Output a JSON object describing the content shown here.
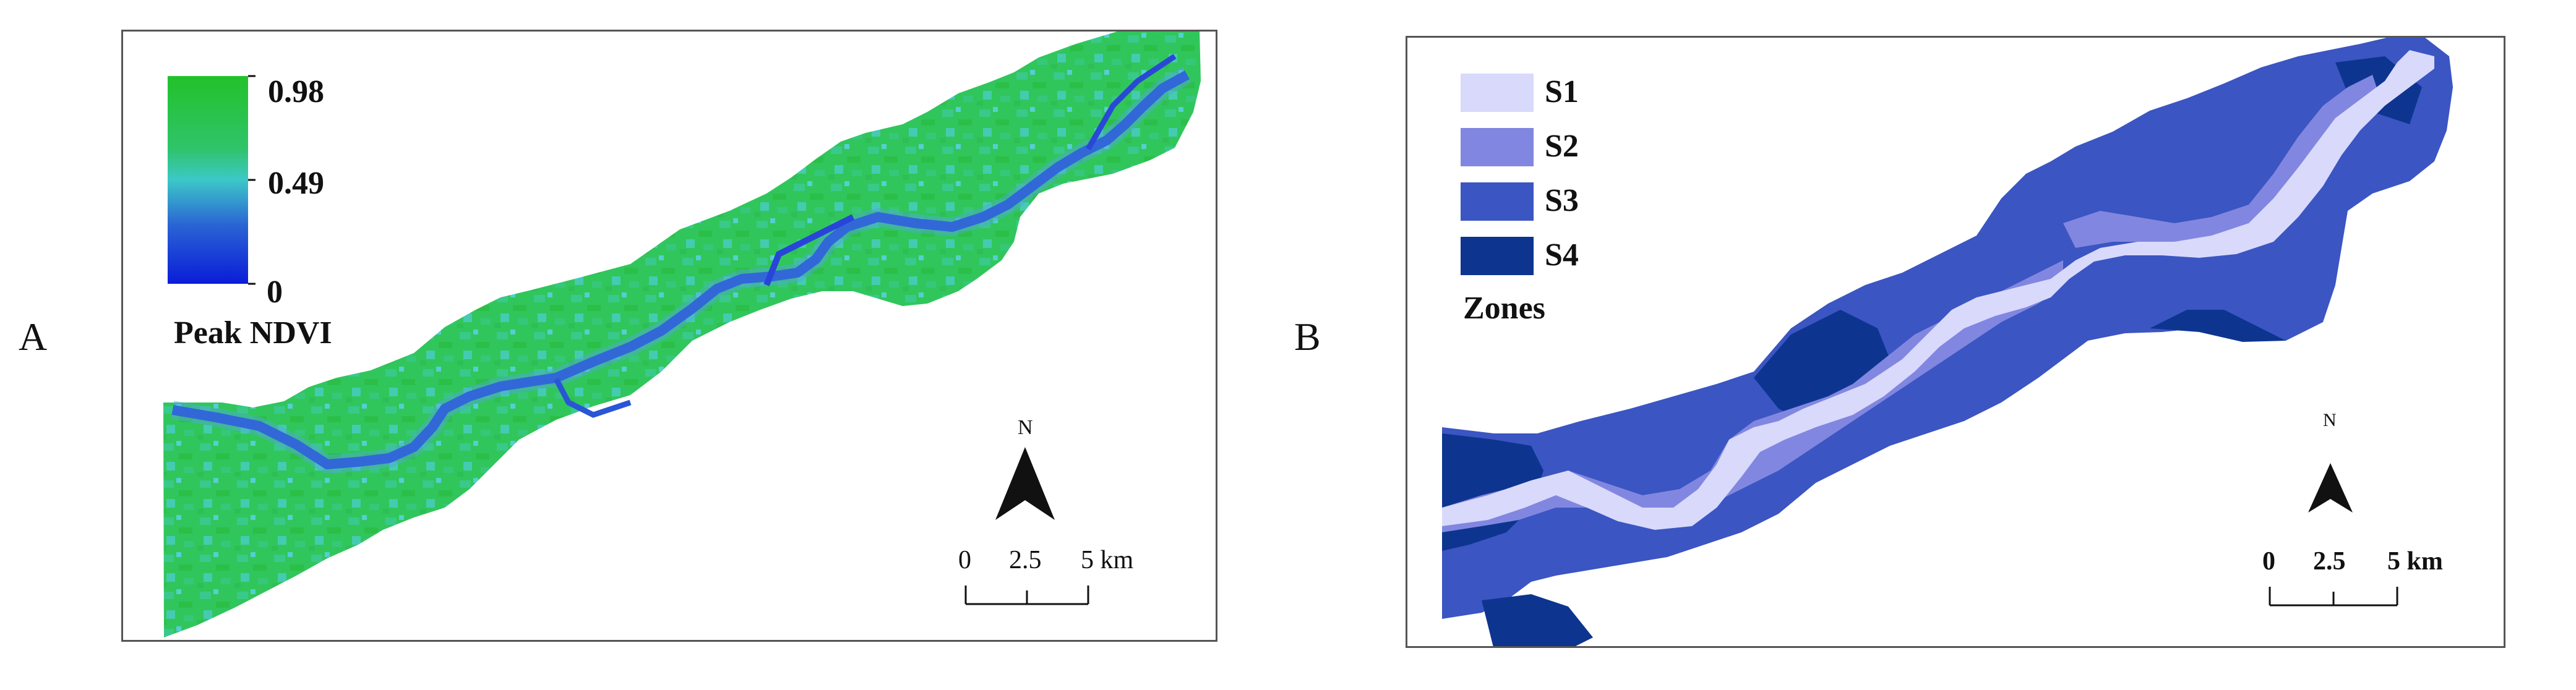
{
  "panel_a": {
    "letter": "A",
    "legend": {
      "max_label": "0.98",
      "mid_label": "0.49",
      "min_label": "0",
      "title": "Peak NDVI",
      "ramp_colors": [
        "#22c22a",
        "#2fc46a",
        "#3cc8c8",
        "#2a63d4",
        "#0a1cd8"
      ]
    },
    "north_label": "N",
    "scale": {
      "tick_0": "0",
      "tick_mid": "2.5",
      "tick_end": "5 km"
    }
  },
  "panel_b": {
    "letter": "B",
    "legend": {
      "items": [
        {
          "label": "S1",
          "color": "#d9d9fb"
        },
        {
          "label": "S2",
          "color": "#8187e0"
        },
        {
          "label": "S3",
          "color": "#3b55c2"
        },
        {
          "label": "S4",
          "color": "#0d3590"
        }
      ],
      "title": "Zones"
    },
    "north_label": "N",
    "scale": {
      "tick_0": "0",
      "tick_mid": "2.5",
      "tick_end": "5 km"
    }
  }
}
